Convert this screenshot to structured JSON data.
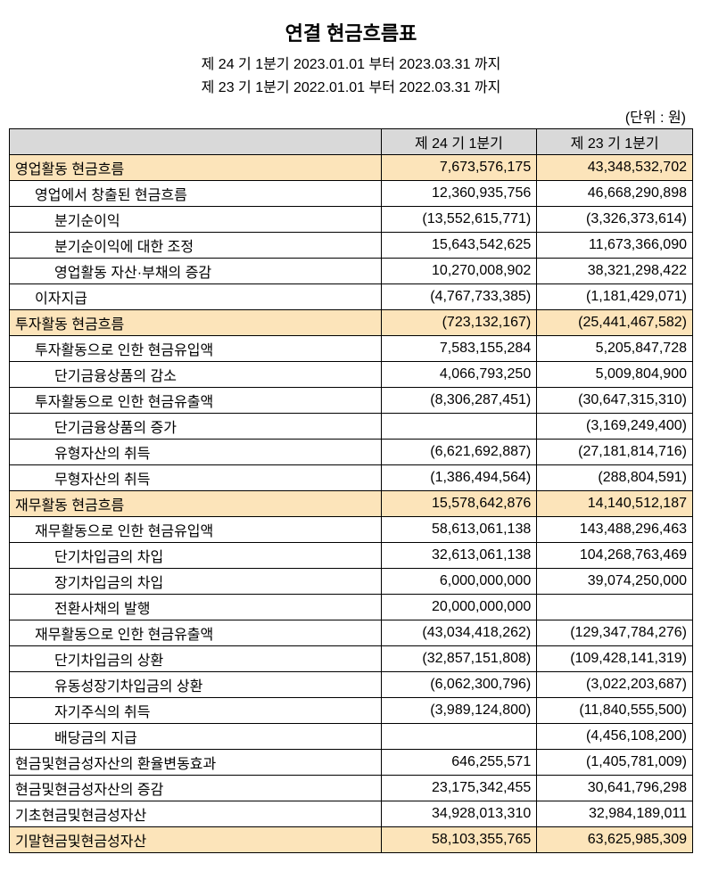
{
  "header": {
    "title": "연결 현금흐름표",
    "period1": "제 24 기 1분기 2023.01.01 부터 2023.03.31 까지",
    "period2": "제 23 기 1분기 2022.01.01 부터 2022.03.31 까지",
    "unit": "(단위 : 원)"
  },
  "columns": {
    "label": "",
    "col1": "제 24 기 1분기",
    "col2": "제 23 기 1분기"
  },
  "rows": [
    {
      "label": "영업활동 현금흐름",
      "v1": "7,673,576,175",
      "v2": "43,348,532,702",
      "indent": 0,
      "highlight": true
    },
    {
      "label": "영업에서 창출된 현금흐름",
      "v1": "12,360,935,756",
      "v2": "46,668,290,898",
      "indent": 1,
      "highlight": false
    },
    {
      "label": "분기순이익",
      "v1": "(13,552,615,771)",
      "v2": "(3,326,373,614)",
      "indent": 2,
      "highlight": false
    },
    {
      "label": "분기순이익에 대한 조정",
      "v1": "15,643,542,625",
      "v2": "11,673,366,090",
      "indent": 2,
      "highlight": false
    },
    {
      "label": "영업활동 자산·부채의 증감",
      "v1": "10,270,008,902",
      "v2": "38,321,298,422",
      "indent": 2,
      "highlight": false
    },
    {
      "label": "이자지급",
      "v1": "(4,767,733,385)",
      "v2": "(1,181,429,071)",
      "indent": 1,
      "highlight": false
    },
    {
      "label": "투자활동 현금흐름",
      "v1": "(723,132,167)",
      "v2": "(25,441,467,582)",
      "indent": 0,
      "highlight": true
    },
    {
      "label": "투자활동으로 인한 현금유입액",
      "v1": "7,583,155,284",
      "v2": "5,205,847,728",
      "indent": 1,
      "highlight": false
    },
    {
      "label": "단기금융상품의 감소",
      "v1": "4,066,793,250",
      "v2": "5,009,804,900",
      "indent": 2,
      "highlight": false
    },
    {
      "label": "투자활동으로 인한 현금유출액",
      "v1": "(8,306,287,451)",
      "v2": "(30,647,315,310)",
      "indent": 1,
      "highlight": false
    },
    {
      "label": "단기금융상품의 증가",
      "v1": "",
      "v2": "(3,169,249,400)",
      "indent": 2,
      "highlight": false
    },
    {
      "label": "유형자산의 취득",
      "v1": "(6,621,692,887)",
      "v2": "(27,181,814,716)",
      "indent": 2,
      "highlight": false
    },
    {
      "label": "무형자산의 취득",
      "v1": "(1,386,494,564)",
      "v2": "(288,804,591)",
      "indent": 2,
      "highlight": false
    },
    {
      "label": "재무활동 현금흐름",
      "v1": "15,578,642,876",
      "v2": "14,140,512,187",
      "indent": 0,
      "highlight": true
    },
    {
      "label": "재무활동으로 인한 현금유입액",
      "v1": "58,613,061,138",
      "v2": "143,488,296,463",
      "indent": 1,
      "highlight": false
    },
    {
      "label": "단기차입금의 차입",
      "v1": "32,613,061,138",
      "v2": "104,268,763,469",
      "indent": 2,
      "highlight": false
    },
    {
      "label": "장기차입금의 차입",
      "v1": "6,000,000,000",
      "v2": "39,074,250,000",
      "indent": 2,
      "highlight": false
    },
    {
      "label": "전환사채의 발행",
      "v1": "20,000,000,000",
      "v2": "",
      "indent": 2,
      "highlight": false
    },
    {
      "label": "재무활동으로 인한 현금유출액",
      "v1": "(43,034,418,262)",
      "v2": "(129,347,784,276)",
      "indent": 1,
      "highlight": false
    },
    {
      "label": "단기차입금의 상환",
      "v1": "(32,857,151,808)",
      "v2": "(109,428,141,319)",
      "indent": 2,
      "highlight": false
    },
    {
      "label": "유동성장기차입금의 상환",
      "v1": "(6,062,300,796)",
      "v2": "(3,022,203,687)",
      "indent": 2,
      "highlight": false
    },
    {
      "label": "자기주식의 취득",
      "v1": "(3,989,124,800)",
      "v2": "(11,840,555,500)",
      "indent": 2,
      "highlight": false
    },
    {
      "label": "배당금의 지급",
      "v1": "",
      "v2": "(4,456,108,200)",
      "indent": 2,
      "highlight": false
    },
    {
      "label": "현금및현금성자산의 환율변동효과",
      "v1": "646,255,571",
      "v2": "(1,405,781,009)",
      "indent": 0,
      "highlight": false
    },
    {
      "label": "현금및현금성자산의 증감",
      "v1": "23,175,342,455",
      "v2": "30,641,796,298",
      "indent": 0,
      "highlight": false
    },
    {
      "label": "기초현금및현금성자산",
      "v1": "34,928,013,310",
      "v2": "32,984,189,011",
      "indent": 0,
      "highlight": false
    },
    {
      "label": "기말현금및현금성자산",
      "v1": "58,103,355,765",
      "v2": "63,625,985,309",
      "indent": 0,
      "highlight": true
    }
  ]
}
